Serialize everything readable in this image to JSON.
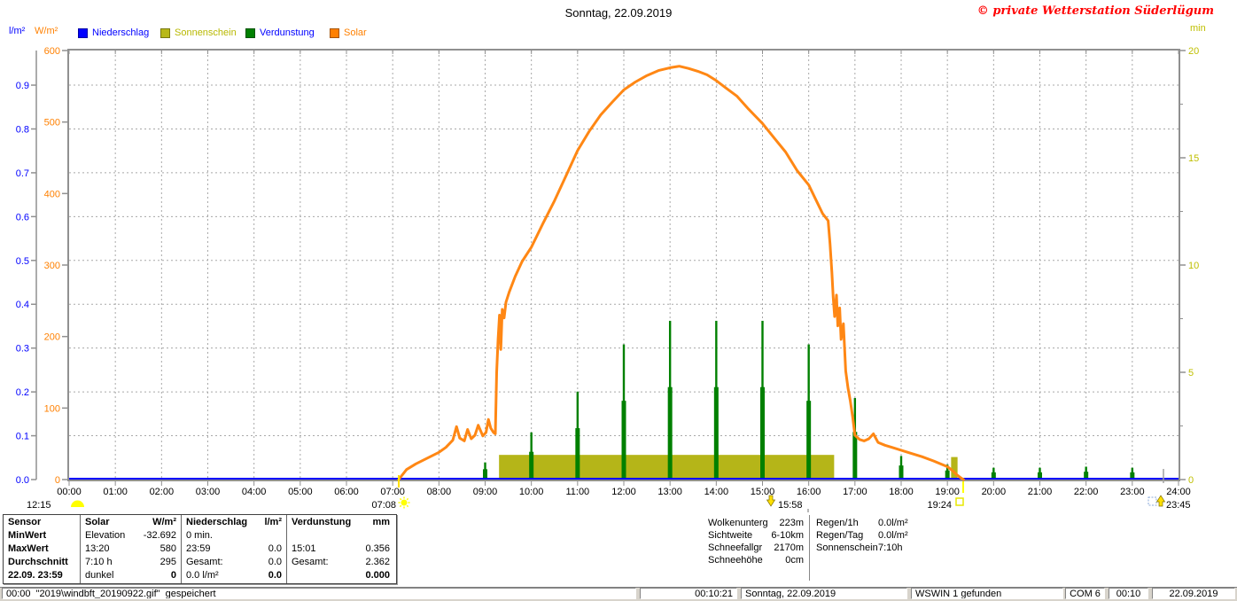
{
  "header": {
    "title": "Sonntag, 22.09.2019",
    "copyright": "© private Wetterstation Süderlügum"
  },
  "legend": {
    "items": [
      {
        "label": "Niederschlag",
        "color": "#0000ff",
        "label_color": "#0000ff"
      },
      {
        "label": "Sonnenschein",
        "color": "#b8b818",
        "label_color": "#b8b800"
      },
      {
        "label": "Verdunstung",
        "color": "#008000",
        "label_color": "#0000ff"
      },
      {
        "label": "Solar",
        "color": "#ff8000",
        "label_color": "#ff8000"
      }
    ]
  },
  "axes": {
    "left_precip": {
      "unit": "l/m²",
      "color": "#0000ff",
      "ticks": [
        "0.0",
        "0.1",
        "0.2",
        "0.3",
        "0.4",
        "0.5",
        "0.6",
        "0.7",
        "0.8",
        "0.9"
      ]
    },
    "left_solar": {
      "unit": "W/m²",
      "color": "#ff8000",
      "ticks": [
        "0",
        "100",
        "200",
        "300",
        "400",
        "500",
        "600"
      ]
    },
    "right_sunshine": {
      "unit": "min",
      "color": "#bfbf00",
      "ticks": [
        "0",
        "5",
        "10",
        "15",
        "20"
      ]
    },
    "x_time": {
      "ticks": [
        "00:00",
        "01:00",
        "02:00",
        "03:00",
        "04:00",
        "05:00",
        "06:00",
        "07:00",
        "08:00",
        "09:00",
        "10:00",
        "11:00",
        "12:00",
        "13:00",
        "14:00",
        "15:00",
        "16:00",
        "17:00",
        "18:00",
        "19:00",
        "20:00",
        "21:00",
        "22:00",
        "23:00",
        "24:00"
      ]
    }
  },
  "chart_data": {
    "type": "line",
    "title": "Sonntag, 22.09.2019",
    "x_axis": {
      "unit": "h",
      "min": 0,
      "max": 24,
      "tick_step_h": 1,
      "grid": true
    },
    "y_axes": [
      {
        "id": "precip",
        "label": "l/m²",
        "min": 0,
        "max": 0.98,
        "side": "left",
        "color": "#0000ff"
      },
      {
        "id": "solar",
        "label": "W/m²",
        "min": 0,
        "max": 600,
        "side": "left",
        "color": "#ff8000"
      },
      {
        "id": "sunshine",
        "label": "min",
        "min": 0,
        "max": 20,
        "side": "right",
        "color": "#bfbf00"
      }
    ],
    "series": [
      {
        "name": "Niederschlag",
        "axis": "precip",
        "type": "line",
        "color": "#0000ff",
        "points": [
          [
            0,
            0
          ],
          [
            24,
            0
          ]
        ]
      },
      {
        "name": "Sonnenschein",
        "axis": "sunshine",
        "type": "band",
        "color": "#b5b518",
        "bands": [
          [
            9.3,
            16.55,
            1.15
          ],
          [
            19.08,
            19.22,
            1.05
          ]
        ]
      },
      {
        "name": "Verdunstung",
        "axis": "sunshine",
        "type": "spike",
        "color": "#008000",
        "spikes": [
          [
            9,
            0.8
          ],
          [
            10,
            2.2
          ],
          [
            11,
            4.1
          ],
          [
            12,
            6.3
          ],
          [
            13,
            7.4
          ],
          [
            14,
            7.4
          ],
          [
            15,
            7.4
          ],
          [
            16,
            6.3
          ],
          [
            17,
            3.8
          ],
          [
            18,
            1.1
          ],
          [
            19,
            0.7
          ],
          [
            20,
            0.55
          ],
          [
            21,
            0.55
          ],
          [
            22,
            0.6
          ],
          [
            23,
            0.55
          ]
        ]
      },
      {
        "name": "Solar",
        "axis": "solar",
        "type": "line",
        "color": "#ff8714",
        "points": [
          [
            7.13,
            0
          ],
          [
            7.3,
            14
          ],
          [
            7.5,
            22
          ],
          [
            7.75,
            30
          ],
          [
            8,
            38
          ],
          [
            8.15,
            45
          ],
          [
            8.3,
            55
          ],
          [
            8.38,
            74
          ],
          [
            8.45,
            58
          ],
          [
            8.55,
            54
          ],
          [
            8.62,
            70
          ],
          [
            8.7,
            57
          ],
          [
            8.78,
            62
          ],
          [
            8.85,
            76
          ],
          [
            8.95,
            61
          ],
          [
            9.02,
            66
          ],
          [
            9.07,
            84
          ],
          [
            9.12,
            72
          ],
          [
            9.18,
            66
          ],
          [
            9.22,
            64
          ],
          [
            9.25,
            150
          ],
          [
            9.28,
            196
          ],
          [
            9.31,
            230
          ],
          [
            9.34,
            182
          ],
          [
            9.37,
            238
          ],
          [
            9.41,
            226
          ],
          [
            9.45,
            248
          ],
          [
            9.52,
            262
          ],
          [
            9.65,
            284
          ],
          [
            9.8,
            305
          ],
          [
            10,
            325
          ],
          [
            10.25,
            358
          ],
          [
            10.5,
            390
          ],
          [
            10.75,
            425
          ],
          [
            11,
            460
          ],
          [
            11.25,
            487
          ],
          [
            11.5,
            510
          ],
          [
            11.75,
            528
          ],
          [
            12,
            545
          ],
          [
            12.25,
            556
          ],
          [
            12.5,
            565
          ],
          [
            12.75,
            572
          ],
          [
            13,
            576
          ],
          [
            13.2,
            578
          ],
          [
            13.4,
            575
          ],
          [
            13.6,
            571
          ],
          [
            13.8,
            566
          ],
          [
            14,
            558
          ],
          [
            14.2,
            548
          ],
          [
            14.45,
            536
          ],
          [
            14.7,
            518
          ],
          [
            15,
            498
          ],
          [
            15.25,
            478
          ],
          [
            15.5,
            458
          ],
          [
            15.75,
            432
          ],
          [
            16,
            412
          ],
          [
            16.15,
            392
          ],
          [
            16.3,
            372
          ],
          [
            16.42,
            362
          ],
          [
            16.46,
            330
          ],
          [
            16.5,
            290
          ],
          [
            16.53,
            255
          ],
          [
            16.56,
            228
          ],
          [
            16.6,
            258
          ],
          [
            16.63,
            215
          ],
          [
            16.67,
            240
          ],
          [
            16.7,
            196
          ],
          [
            16.75,
            218
          ],
          [
            16.8,
            152
          ],
          [
            16.85,
            128
          ],
          [
            16.9,
            110
          ],
          [
            16.95,
            88
          ],
          [
            17,
            62
          ],
          [
            17.1,
            56
          ],
          [
            17.2,
            54
          ],
          [
            17.3,
            57
          ],
          [
            17.4,
            64
          ],
          [
            17.5,
            52
          ],
          [
            17.65,
            48
          ],
          [
            17.8,
            45
          ],
          [
            18,
            41
          ],
          [
            18.2,
            37
          ],
          [
            18.45,
            32
          ],
          [
            18.7,
            26
          ],
          [
            19,
            18
          ],
          [
            19.1,
            13
          ],
          [
            19.2,
            7
          ],
          [
            19.3,
            2
          ],
          [
            19.35,
            0
          ]
        ]
      }
    ],
    "sun_moon_markers": [
      {
        "time": "12:15",
        "icon": "moon-icon",
        "at_h": -0.5
      },
      {
        "time": "07:08",
        "icon": "sun-icon",
        "at_h": 7.13
      },
      {
        "time": "15:58",
        "icon": "arrow-down-icon",
        "at_h": 15.97
      },
      {
        "time": "19:24",
        "icon": "square-open-icon",
        "at_h": 19.4
      },
      {
        "time": "23:45",
        "icon": "arrow-up-icon",
        "at_h": 23.75
      }
    ]
  },
  "stats_table": {
    "row_labels": [
      "Sensor",
      "MinWert",
      "MaxWert",
      "Durchschnitt",
      "22.09. 23:59"
    ],
    "columns": [
      {
        "name": "Solar",
        "unit": "W/m²",
        "rows": [
          [
            "Elevation",
            "-32.692"
          ],
          [
            "13:20",
            "580"
          ],
          [
            "7:10 h",
            "295"
          ],
          [
            "dunkel",
            "0"
          ]
        ]
      },
      {
        "name": "Niederschlag",
        "unit": "l/m²",
        "rows": [
          [
            "0 min.",
            ""
          ],
          [
            "23:59",
            "0.0"
          ],
          [
            "Gesamt:",
            "0.0"
          ],
          [
            "0.0 l/m²",
            "0.0"
          ]
        ]
      },
      {
        "name": "Verdunstung",
        "unit": "mm",
        "rows": [
          [
            "",
            ""
          ],
          [
            "15:01",
            "0.356"
          ],
          [
            "Gesamt:",
            "2.362"
          ],
          [
            "",
            "0.000"
          ]
        ]
      }
    ]
  },
  "info_panel": {
    "left": [
      [
        "Wolkenunterg",
        "223m"
      ],
      [
        "Sichtweite",
        "6-10km"
      ],
      [
        "Schneefallgr",
        "2170m"
      ],
      [
        "Schneehöhe",
        "0cm"
      ]
    ],
    "right": [
      [
        "Regen/1h",
        "0.0l/m²"
      ],
      [
        "Regen/Tag",
        "0.0l/m²"
      ],
      [
        "Sonnenschein",
        "7:10h"
      ]
    ]
  },
  "status_bar": {
    "panels": [
      "00:00  \"2019\\windbft_20190922.gif\"  gespeichert",
      "00:10:21",
      "Sonntag, 22.09.2019",
      "WSWIN 1 gefunden",
      "COM 6",
      "00:10",
      "22.09.2019"
    ]
  }
}
